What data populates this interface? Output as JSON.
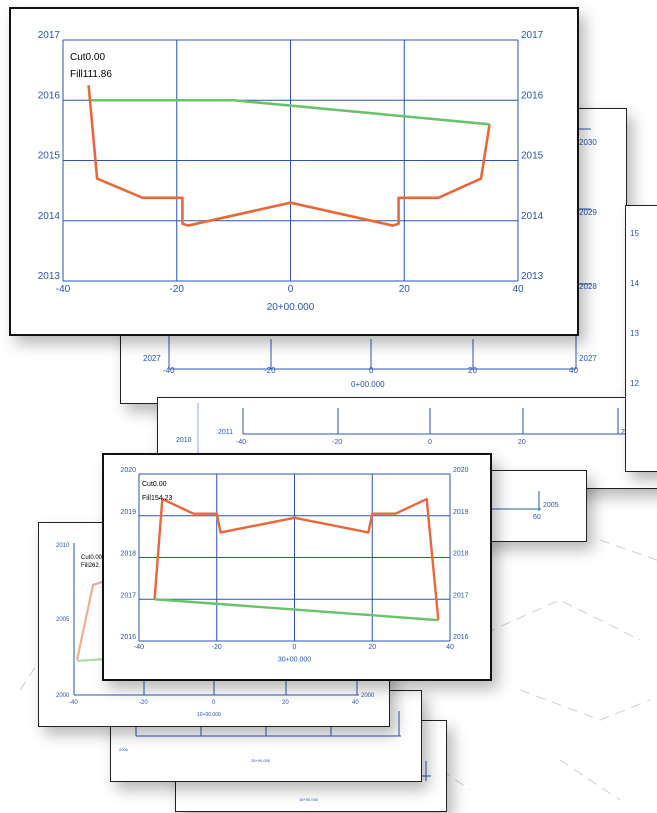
{
  "chart_data": [
    {
      "type": "line",
      "xlabel": "20+00.000",
      "x_ticks": [
        "-40",
        "-20",
        "0",
        "20",
        "40"
      ],
      "y_ticks": [
        "2013",
        "2014",
        "2015",
        "2016",
        "2017"
      ],
      "xlim": [
        -40,
        40
      ],
      "ylim": [
        2013,
        2017
      ],
      "annotations": [
        "Cut0.00",
        "Fill111.86"
      ],
      "series": [
        {
          "color": "#e8683a",
          "x": [
            -35.5,
            -34,
            -26,
            -19,
            -19,
            -18,
            0,
            18,
            19,
            19,
            26,
            33.5,
            35
          ],
          "y": [
            2016.25,
            2014.7,
            2014.38,
            2014.38,
            2013.95,
            2013.92,
            2014.3,
            2013.92,
            2013.95,
            2014.38,
            2014.38,
            2014.7,
            2015.6
          ]
        },
        {
          "color": "#6cc16c",
          "x": [
            -35,
            -10,
            35
          ],
          "y": [
            2016.0,
            2016.0,
            2015.6
          ]
        }
      ]
    },
    {
      "type": "line",
      "xlabel": "30+00.000",
      "x_ticks": [
        "-40",
        "-20",
        "0",
        "20",
        "40"
      ],
      "y_ticks": [
        "2016",
        "2017",
        "2018",
        "2019",
        "2020"
      ],
      "xlim": [
        -40,
        40
      ],
      "ylim": [
        2016,
        2020
      ],
      "annotations": [
        "Cut0.00",
        "Fill154.23"
      ],
      "series": [
        {
          "color": "#e8683a",
          "x": [
            -36,
            -34,
            -26,
            -20,
            -19,
            0,
            19,
            20,
            26,
            34,
            37
          ],
          "y": [
            2017.0,
            2019.4,
            2019.05,
            2019.05,
            2018.6,
            2018.95,
            2018.6,
            2019.05,
            2019.05,
            2019.4,
            2016.5
          ]
        },
        {
          "color": "#6cc16c",
          "x": [
            -36,
            37
          ],
          "y": [
            2017.0,
            2016.5
          ]
        }
      ]
    },
    {
      "type": "line",
      "xlabel": "0+00.000",
      "x_ticks": [
        "-40",
        "-20",
        "0",
        "20",
        "40"
      ],
      "y_ticks": [
        "2027",
        "2028",
        "2029",
        "2030"
      ],
      "series": []
    },
    {
      "type": "line",
      "xlabel": "10+00.000",
      "x_ticks": [
        "-40",
        "-20",
        "0",
        "20",
        "40"
      ],
      "y_ticks": [
        "2005",
        "2006"
      ],
      "annotations": [
        "Cut0.00",
        "Fill262."
      ],
      "series": []
    },
    {
      "type": "line",
      "xlabel": "15+00.000",
      "series": []
    },
    {
      "type": "line",
      "xlabel": "25+00.000",
      "series": []
    }
  ],
  "back_labels": {
    "s1": {
      "left_ticks": [
        "2027"
      ],
      "right_ticks": [
        "2030",
        "2029",
        "2028",
        "2027"
      ],
      "x_ticks": [
        "-40",
        "-20",
        "0",
        "20",
        "40"
      ],
      "xlabel": "0+00.000"
    },
    "s2": {
      "left_ticks": [
        "2010",
        "2011"
      ],
      "right_ticks": [
        "2011"
      ],
      "x_ticks": [
        "-40",
        "-20",
        "0",
        "20"
      ],
      "right_edge_nums": [
        "15",
        "14",
        "13",
        "12"
      ]
    },
    "s3": {
      "right_ticks": [
        "2005"
      ],
      "x_ticks": [
        "60"
      ]
    },
    "s4": {
      "left_ticks": [
        "2010",
        "2005",
        "2000"
      ],
      "right_ticks": [
        "2000"
      ],
      "x_ticks": [
        "-40",
        "-20",
        "0",
        "20",
        "40"
      ],
      "xlabel": "10+00.000",
      "annot": [
        "Cut0.00",
        "Fill262."
      ]
    },
    "s5": {
      "left_ticks": [
        "2006"
      ],
      "xlabel": "25+00.000"
    },
    "s6": {
      "xlabel": "15+00.000"
    }
  }
}
